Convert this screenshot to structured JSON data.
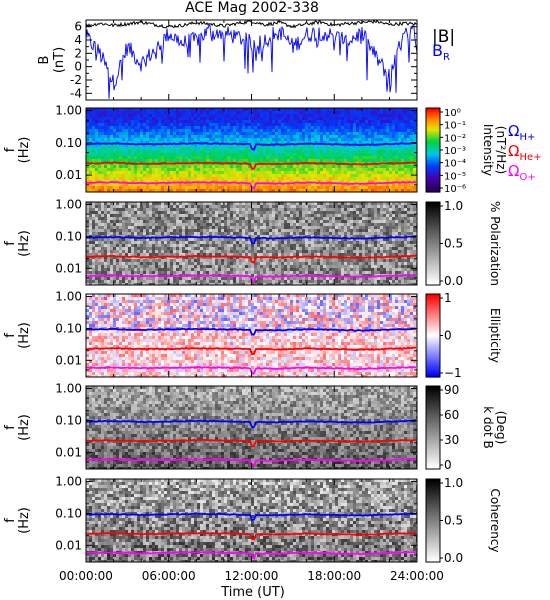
{
  "title": "ACE Mag 2002-338",
  "colors": {
    "B_total": "#000000",
    "B_R": "#0000ff",
    "Omega_H": "#0000ff",
    "Omega_He": "#ff0000",
    "Omega_O": "#ff00ff"
  },
  "legend": {
    "B_total": "|B|",
    "B_R_base": "B",
    "B_R_sub": "R",
    "Omega_H_sub": "H+",
    "Omega_He_sub": "He+",
    "Omega_O_sub": "O+",
    "omega_symbol": "Ω"
  },
  "x_axis": {
    "label": "Time (UT)",
    "range_hours": [
      0,
      24
    ],
    "tick_labels": [
      "00:00:00",
      "06:00:00",
      "12:00:00",
      "18:00:00",
      "24:00:00"
    ]
  },
  "chart_data": [
    {
      "type": "line",
      "panel": "magnetic-field",
      "ylabel": "B",
      "yunit": "(nT)",
      "ylim": [
        -5,
        7
      ],
      "ytick_labels": [
        "6",
        "4",
        "2",
        "0",
        "-2",
        "-4"
      ],
      "series": [
        {
          "name": "|B|",
          "x_hours": [
            0,
            1,
            2,
            3,
            4,
            5,
            6,
            7,
            8,
            9,
            10,
            11,
            12,
            13,
            14,
            15,
            16,
            17,
            18,
            19,
            20,
            21,
            22,
            23,
            24
          ],
          "values": [
            6.1,
            6.5,
            6.2,
            6.4,
            6.7,
            6.3,
            6.0,
            6.2,
            6.6,
            6.4,
            6.1,
            6.5,
            6.8,
            6.3,
            6.6,
            6.0,
            6.4,
            6.7,
            6.2,
            6.5,
            6.6,
            6.8,
            6.3,
            6.5,
            6.4
          ]
        },
        {
          "name": "B_R",
          "x_hours": [
            0,
            1,
            2,
            3,
            4,
            5,
            6,
            7,
            8,
            9,
            10,
            11,
            12,
            13,
            14,
            15,
            16,
            17,
            18,
            19,
            20,
            21,
            22,
            23,
            24
          ],
          "values": [
            4.5,
            2.0,
            -2.5,
            3.0,
            0.5,
            2.5,
            5.0,
            3.5,
            4.0,
            5.5,
            5.0,
            4.5,
            3.5,
            4.0,
            5.5,
            3.0,
            4.8,
            5.2,
            4.5,
            4.0,
            5.0,
            1.5,
            -1.5,
            4.5,
            5.5
          ]
        }
      ]
    },
    {
      "type": "heatmap",
      "panel": "intensity",
      "ylabel": "f",
      "yunit": "(Hz)",
      "ytick_labels": [
        "1.00",
        "0.10",
        "0.01"
      ],
      "ylim_hz": [
        0.003,
        1.2
      ],
      "yscale": "log",
      "colorbar_label": "Intensity",
      "colorbar_unit": "(nT²/Hz)",
      "colorbar_ticks": [
        "10⁰",
        "10⁻¹",
        "10⁻²",
        "10⁻³",
        "10⁻⁴",
        "10⁻⁵",
        "10⁻⁶"
      ],
      "colormap": "rainbow"
    },
    {
      "type": "heatmap",
      "panel": "polarization",
      "ylabel": "f",
      "yunit": "(Hz)",
      "ytick_labels": [
        "1.00",
        "0.10",
        "0.01"
      ],
      "colorbar_label": "% Polarization",
      "colorbar_ticks": [
        "1.0",
        "0.5",
        "0.0"
      ],
      "colormap": "gray"
    },
    {
      "type": "heatmap",
      "panel": "ellipticity",
      "ylabel": "f",
      "yunit": "(Hz)",
      "ytick_labels": [
        "1.00",
        "0.10",
        "0.01"
      ],
      "colorbar_label": "Ellipticity",
      "colorbar_ticks": [
        "1",
        "0",
        "−1"
      ],
      "colormap": "blue-white-red"
    },
    {
      "type": "heatmap",
      "panel": "wave-normal-angle",
      "ylabel": "f",
      "yunit": "(Hz)",
      "ytick_labels": [
        "1.00",
        "0.10",
        "0.01"
      ],
      "colorbar_label": "k dot B",
      "colorbar_unit": "(Deg)",
      "colorbar_ticks": [
        "90",
        "60",
        "30",
        "0"
      ],
      "colormap": "gray"
    },
    {
      "type": "heatmap",
      "panel": "coherency",
      "ylabel": "f",
      "yunit": "(Hz)",
      "ytick_labels": [
        "1.00",
        "0.10",
        "0.01"
      ],
      "colorbar_label": "Coherency",
      "colorbar_ticks": [
        "1.0",
        "0.5",
        "0.0"
      ],
      "colormap": "gray"
    }
  ],
  "gyrofrequency_lines_hz": {
    "x_hours": [
      0,
      2,
      4,
      6,
      8,
      10,
      12,
      14,
      16,
      18,
      20,
      22,
      24
    ],
    "H+": [
      0.092,
      0.095,
      0.09,
      0.093,
      0.096,
      0.094,
      0.09,
      0.088,
      0.094,
      0.09,
      0.086,
      0.092,
      0.098
    ],
    "He+": [
      0.023,
      0.024,
      0.0225,
      0.023,
      0.024,
      0.0235,
      0.0225,
      0.022,
      0.0235,
      0.0225,
      0.0215,
      0.023,
      0.0245
    ],
    "O+": [
      0.0058,
      0.006,
      0.0056,
      0.0058,
      0.006,
      0.0059,
      0.0056,
      0.0055,
      0.0059,
      0.0056,
      0.0054,
      0.0058,
      0.0061
    ]
  }
}
